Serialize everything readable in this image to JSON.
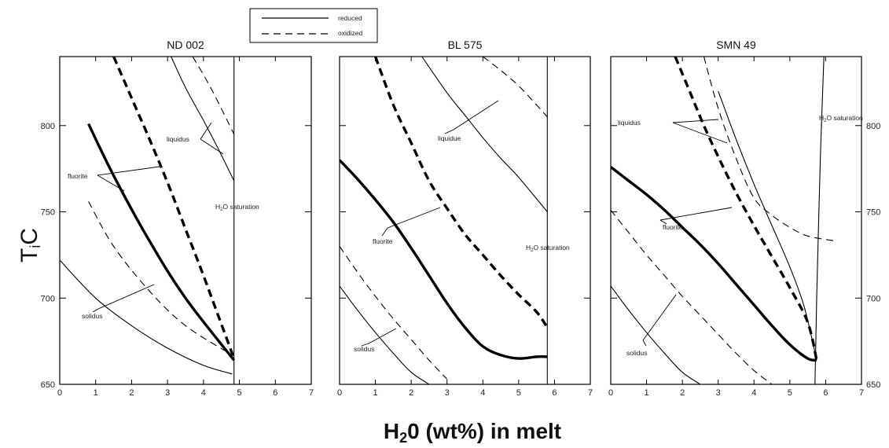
{
  "chart_data": {
    "type": "line",
    "legend": {
      "placement": "top-center",
      "entries": [
        {
          "label": "reduced",
          "style": "solid"
        },
        {
          "label": "oxidized",
          "style": "dashed"
        }
      ]
    },
    "xlabel_main": "H",
    "xlabel_sub": "2",
    "xlabel_rest": "0 (wt%) in melt",
    "ylabel_main": "T",
    "ylabel_sub": "i",
    "ylabel_rest": "C",
    "xlim": [
      0,
      7
    ],
    "ylim": [
      650,
      840
    ],
    "xticks": [
      "0",
      "1",
      "2",
      "3",
      "4",
      "5",
      "6",
      "7"
    ],
    "yticks": [
      650,
      700,
      750,
      800
    ],
    "panels": [
      {
        "title": "ND 002",
        "y_tick_labels_side": "left",
        "saturation_label": "H₂O saturation",
        "series": [
          {
            "name": "solidus",
            "style": "thin-solid",
            "x": [
              0,
              1,
              2,
              3,
              4,
              4.8
            ],
            "y": [
              722,
              700,
              684,
              671,
              661,
              656
            ]
          },
          {
            "name": "solidus",
            "style": "thin-dashed",
            "x": [
              0.8,
              1.5,
              2.5,
              3.5,
              4.8
            ],
            "y": [
              756,
              730,
              704,
              684,
              667
            ]
          },
          {
            "name": "fluorite",
            "style": "thick-solid",
            "x": [
              0.8,
              1.5,
              2.5,
              3.5,
              4.85
            ],
            "y": [
              801,
              771,
              733,
              700,
              664
            ]
          },
          {
            "name": "fluorite",
            "style": "thick-dashed",
            "x": [
              1.5,
              2,
              2.5,
              3,
              3.5,
              4,
              4.85
            ],
            "y": [
              840,
              816,
              792,
              767,
              740,
              713,
              665
            ]
          },
          {
            "name": "liquidus",
            "style": "thin-solid",
            "x": [
              3.1,
              3.5,
              4.0,
              4.4,
              4.85
            ],
            "y": [
              840,
              822,
              803,
              787,
              768
            ]
          },
          {
            "name": "liquidus",
            "style": "thin-dashed",
            "x": [
              3.7,
              4.2,
              4.85
            ],
            "y": [
              840,
              822,
              795
            ]
          },
          {
            "name": "H2O saturation",
            "style": "thin-solid",
            "x": [
              4.85,
              4.85
            ],
            "y": [
              650,
              840
            ]
          }
        ],
        "annotations": [
          "solidus",
          "fluorite",
          "liquidus",
          "H2O saturation"
        ],
        "annotation_text": {
          "solidus": "solidus",
          "fluorite": "fluorite",
          "liquidus": "liquidus",
          "sat_pre": "H",
          "sat_sub": "2",
          "sat_post": "O saturation"
        }
      },
      {
        "title": "BL 575",
        "y_tick_labels_side": "none",
        "series": [
          {
            "name": "solidus",
            "style": "thin-solid",
            "x": [
              0,
              0.5,
              1,
              1.5,
              2,
              2.5
            ],
            "y": [
              707,
              693,
              680,
              668,
              657,
              650
            ]
          },
          {
            "name": "solidus",
            "style": "thin-dashed",
            "x": [
              0,
              0.5,
              1,
              1.5,
              2,
              2.5,
              3.0
            ],
            "y": [
              730,
              715,
              701,
              688,
              676,
              664,
              653
            ]
          },
          {
            "name": "fluorite",
            "style": "thick-solid",
            "x": [
              0,
              0.5,
              1,
              1.5,
              2,
              2.5,
              3,
              3.5,
              4,
              4.5,
              5,
              5.5,
              5.8
            ],
            "y": [
              780,
              769,
              757,
              744,
              729,
              713,
              697,
              683,
              672,
              667,
              665,
              666,
              666
            ]
          },
          {
            "name": "fluorite",
            "style": "thick-dashed",
            "x": [
              1.0,
              1.5,
              2,
              2.5,
              3,
              3.5,
              4,
              4.5,
              5,
              5.5,
              5.8
            ],
            "y": [
              840,
              812,
              790,
              768,
              752,
              737,
              725,
              713,
              702,
              692,
              683
            ]
          },
          {
            "name": "liquidus",
            "style": "thin-solid",
            "x": [
              2.3,
              3,
              3.5,
              4,
              4.5,
              5,
              5.8
            ],
            "y": [
              840,
              819,
              806,
              793,
              781,
              770,
              750
            ]
          },
          {
            "name": "liquidus",
            "style": "thin-dashed",
            "x": [
              4.0,
              4.5,
              5.0,
              5.5,
              5.8
            ],
            "y": [
              840,
              832,
              823,
              812,
              805
            ]
          },
          {
            "name": "H2O saturation",
            "style": "thin-solid",
            "x": [
              5.8,
              5.8
            ],
            "y": [
              650,
              840
            ]
          }
        ],
        "annotations": [
          "solidus",
          "fluorite",
          "liquidue",
          "H2O saturation"
        ],
        "annotation_text": {
          "solidus": "solidus",
          "fluorite": "fluorite",
          "liquidus": "liquidue",
          "sat_pre": "H",
          "sat_sub": "2",
          "sat_post": "O saturation"
        }
      },
      {
        "title": "SMN 49",
        "y_tick_labels_side": "right",
        "series": [
          {
            "name": "solidus",
            "style": "thin-solid",
            "x": [
              0,
              0.5,
              1,
              1.5,
              2,
              2.5
            ],
            "y": [
              707,
              693,
              680,
              668,
              657,
              650
            ]
          },
          {
            "name": "solidus",
            "style": "thin-dashed",
            "x": [
              0,
              0.5,
              1,
              1.5,
              2,
              2.5,
              3,
              3.5,
              4,
              4.5
            ],
            "y": [
              751,
              738,
              725,
              713,
              701,
              690,
              679,
              668,
              658,
              650
            ]
          },
          {
            "name": "fluorite",
            "style": "thick-solid",
            "x": [
              0,
              0.5,
              1,
              1.5,
              2,
              2.5,
              3,
              3.5,
              4,
              4.5,
              5,
              5.5,
              5.75
            ],
            "y": [
              776,
              768,
              760,
              751,
              741,
              731,
              720,
              708,
              696,
              684,
              673,
              665,
              664
            ]
          },
          {
            "name": "fluorite",
            "style": "thick-dashed",
            "x": [
              1.8,
              2.2,
              2.6,
              3,
              3.5,
              4,
              4.5,
              5,
              5.5,
              5.75
            ],
            "y": [
              840,
              820,
              800,
              782,
              761,
              742,
              724,
              706,
              686,
              664
            ]
          },
          {
            "name": "liquidus",
            "style": "thin-solid",
            "x": [
              3.0,
              3.5,
              4,
              4.5,
              5,
              5.4,
              5.75
            ],
            "y": [
              820,
              792,
              766,
              742,
              718,
              695,
              664
            ]
          },
          {
            "name": "liquidus",
            "style": "thin-dashed",
            "x": [
              2.6,
              3,
              3.5,
              4,
              4.5,
              5,
              5.5,
              6.3
            ],
            "y": [
              840,
              810,
              781,
              758,
              748,
              741,
              736,
              733
            ]
          },
          {
            "name": "H2O saturation",
            "style": "thin-solid",
            "x": [
              5.7,
              5.75,
              5.85,
              5.95
            ],
            "y": [
              650,
              700,
              780,
              840
            ]
          }
        ],
        "annotations": [
          "solidus",
          "fluorite",
          "liquidus",
          "H2O saturation"
        ],
        "annotation_text": {
          "solidus": "solidus",
          "fluorite": "fluorite",
          "liquidus": "liquidus",
          "sat_pre": "H",
          "sat_sub": "2",
          "sat_post": "O saturation"
        }
      }
    ]
  }
}
